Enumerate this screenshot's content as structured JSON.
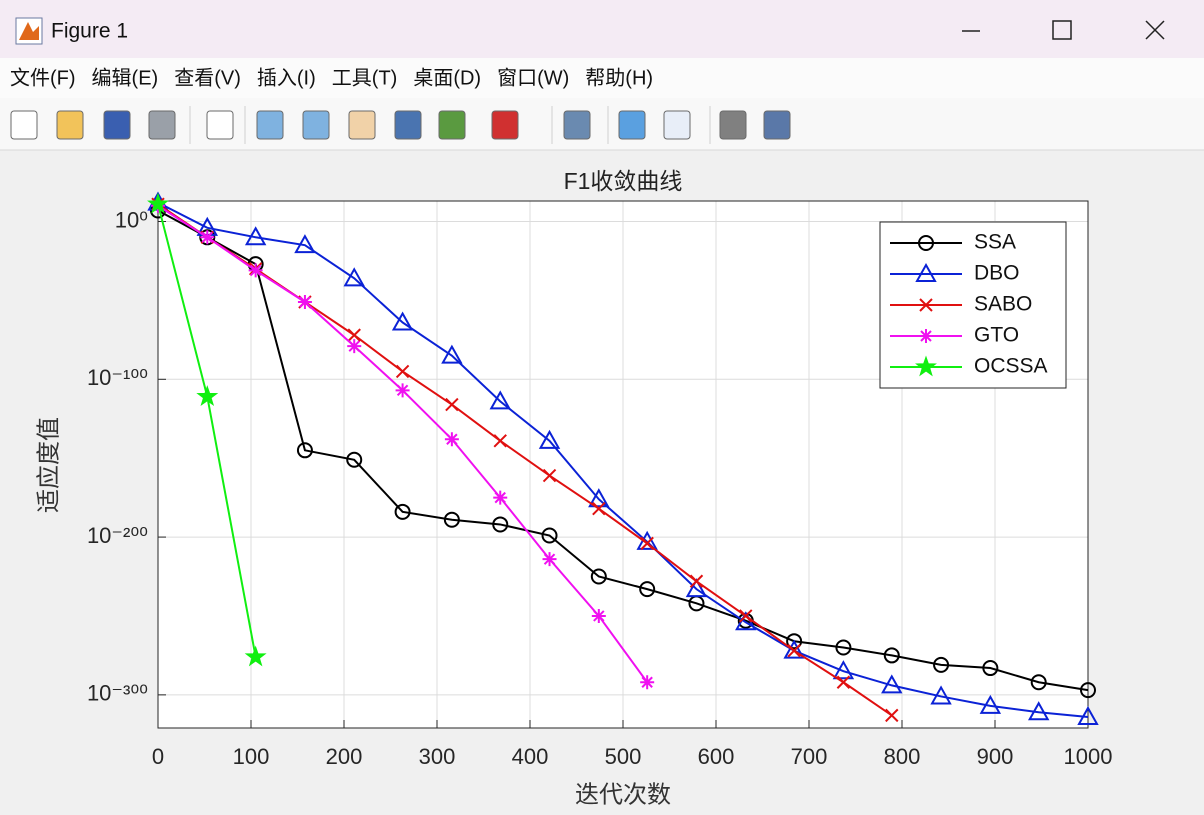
{
  "window": {
    "title": "Figure 1",
    "menu": [
      "文件(F)",
      "编辑(E)",
      "查看(V)",
      "插入(I)",
      "工具(T)",
      "桌面(D)",
      "窗口(W)",
      "帮助(H)"
    ]
  },
  "chart_data": {
    "type": "line",
    "title": "F1收敛曲线",
    "x_label": "迭代次数",
    "y_label": "适应度值",
    "x": [
      0,
      53,
      105,
      158,
      211,
      263,
      316,
      368,
      421,
      474,
      526,
      579,
      632,
      684,
      737,
      789,
      842,
      895,
      947,
      1000
    ],
    "series": [
      {
        "name": "SSA",
        "color": "#000000",
        "marker": "o",
        "values": [
          10000000.0,
          1e-10,
          1e-27,
          1e-145,
          1e-151,
          1e-184,
          1e-189,
          1e-192,
          1e-199,
          1e-225,
          1e-233,
          1e-242,
          1e-253,
          1e-266,
          1e-270,
          1e-275,
          1e-281,
          1e-283,
          1e-292,
          1e-297
        ]
      },
      {
        "name": "DBO",
        "color": "#0b22d6",
        "marker": "^",
        "values": [
          1000000000000.0,
          0.0001,
          1e-10,
          1e-15,
          1e-36,
          1e-64,
          1e-85,
          1e-114,
          1e-139,
          1e-176,
          1e-203,
          1e-233,
          1e-254,
          1e-272,
          1e-285,
          1e-294,
          1e-301,
          1e-307,
          1e-311,
          1e-314
        ]
      },
      {
        "name": "SABO",
        "color": "#e01010",
        "marker": "x",
        "values": [
          100000000000.0,
          1e-10,
          1e-30,
          1e-51,
          1e-72,
          1e-95,
          1e-116,
          1e-139,
          1e-161,
          1e-182,
          1e-204,
          1e-228,
          1e-250,
          1e-272,
          1e-292,
          1e-313,
          null,
          null,
          null,
          null
        ]
      },
      {
        "name": "GTO",
        "color": "#f010f0",
        "marker": "*",
        "values": [
          10000000000.0,
          1e-10,
          1e-31,
          1e-51,
          1e-79,
          1e-107,
          1e-138,
          1e-175,
          1e-214,
          1e-250,
          1e-292,
          null,
          null,
          null,
          null,
          null,
          null,
          null,
          null,
          null
        ]
      },
      {
        "name": "OCSSA",
        "color": "#10ef10",
        "marker": "p",
        "values": [
          100000000000.0,
          1e-111,
          1e-276,
          null,
          null,
          null,
          null,
          null,
          null,
          null,
          null,
          null,
          null,
          null,
          null,
          null,
          null,
          null,
          null,
          null
        ]
      }
    ],
    "xlim": [
      0,
      1000
    ],
    "xticks": [
      0,
      100,
      200,
      300,
      400,
      500,
      600,
      700,
      800,
      900,
      1000
    ],
    "ylim": [
      1e-321,
      10000000000000.0
    ],
    "log_y": true,
    "yticks": [
      {
        "value": 1e-300,
        "label": "10⁻³⁰⁰"
      },
      {
        "value": 1e-200,
        "label": "10⁻²⁰⁰"
      },
      {
        "value": 1e-100,
        "label": "10⁻¹⁰⁰"
      },
      {
        "value": 1,
        "label": "10⁰"
      }
    ],
    "grid": true,
    "legend": "upper right"
  }
}
